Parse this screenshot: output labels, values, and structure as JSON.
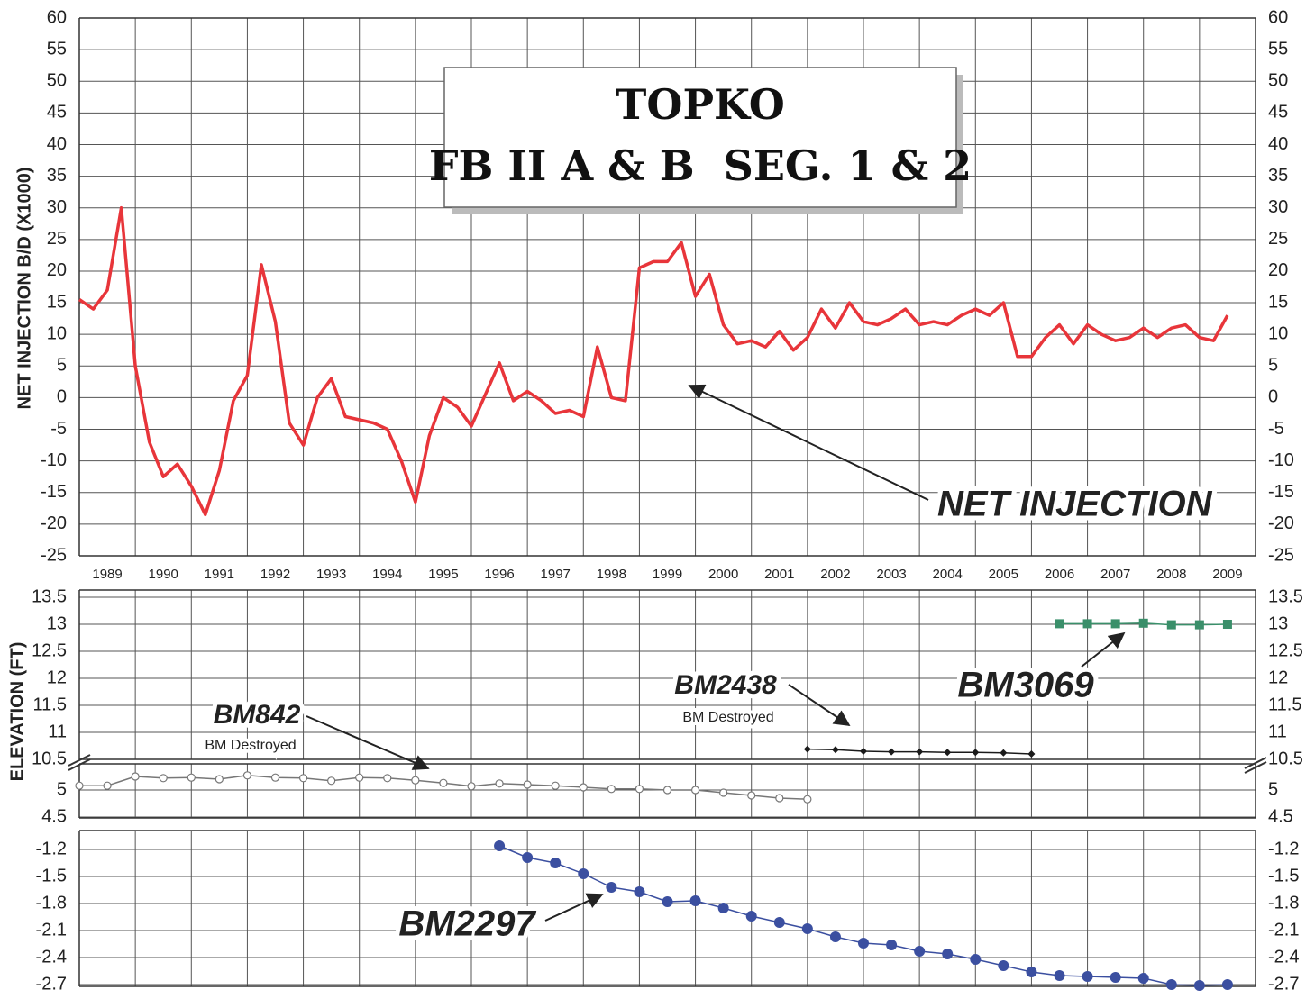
{
  "chart_data": [
    {
      "type": "line",
      "title": [
        "TOPKO",
        "FB II A & B  SEG. 1 & 2"
      ],
      "y_label": "NET INJECTION B/D (X1000)",
      "xlim": [
        1989,
        2010
      ],
      "xticks": [
        1989,
        1990,
        1991,
        1992,
        1993,
        1994,
        1995,
        1996,
        1997,
        1998,
        1999,
        2000,
        2001,
        2002,
        2003,
        2004,
        2005,
        2006,
        2007,
        2008,
        2009
      ],
      "ylim": [
        -25,
        60
      ],
      "yticks": [
        60,
        55,
        50,
        45,
        40,
        35,
        30,
        25,
        20,
        15,
        10,
        5,
        0,
        -5,
        -10,
        -15,
        -20,
        -25
      ],
      "grid": true,
      "series": [
        {
          "name": "NET INJECTION",
          "color": "#e8353a",
          "marker": "none",
          "x": [
            1989,
            1989.25,
            1989.5,
            1989.75,
            1990,
            1990.25,
            1990.5,
            1990.75,
            1991,
            1991.25,
            1991.5,
            1991.75,
            1992,
            1992.25,
            1992.5,
            1992.75,
            1993,
            1993.25,
            1993.5,
            1993.75,
            1994,
            1994.25,
            1994.5,
            1994.75,
            1995,
            1995.25,
            1995.5,
            1995.75,
            1996,
            1996.25,
            1996.5,
            1996.75,
            1997,
            1997.25,
            1997.5,
            1997.75,
            1998,
            1998.25,
            1998.5,
            1998.75,
            1999,
            1999.25,
            1999.5,
            1999.75,
            2000,
            2000.25,
            2000.5,
            2000.75,
            2001,
            2001.25,
            2001.5,
            2001.75,
            2002,
            2002.25,
            2002.5,
            2002.75,
            2003,
            2003.25,
            2003.5,
            2003.75,
            2004,
            2004.25,
            2004.5,
            2004.75,
            2005,
            2005.25,
            2005.5,
            2005.75,
            2006,
            2006.25,
            2006.5,
            2006.75,
            2007,
            2007.25,
            2007.5,
            2007.75,
            2008,
            2008.25,
            2008.5,
            2008.75,
            2009,
            2009.25,
            2009.5
          ],
          "values": [
            15.5,
            14,
            17,
            30,
            5,
            -7,
            -12.5,
            -10.5,
            -14,
            -18.5,
            -11.5,
            -0.5,
            3.5,
            21,
            12,
            -4,
            -7.5,
            0,
            3,
            -3,
            -3.5,
            -4,
            -5,
            -10,
            -16.5,
            -6,
            0,
            -1.5,
            -4.5,
            0.5,
            5.5,
            -0.5,
            1,
            -0.5,
            -2.5,
            -2,
            -3,
            8,
            0,
            -0.5,
            20.5,
            21.5,
            21.5,
            24.5,
            16,
            19.5,
            11.5,
            8.5,
            9,
            8,
            10.5,
            7.5,
            9.5,
            14,
            11,
            15,
            12,
            11.5,
            12.5,
            14,
            11.5,
            12,
            11.5,
            13,
            14,
            13,
            15,
            6.5,
            6.5,
            9.5,
            11.5,
            8.5,
            11.5,
            10,
            9,
            9.5,
            11,
            9.5,
            11,
            11.5,
            9.5,
            9,
            13
          ]
        }
      ]
    },
    {
      "type": "line",
      "y_label": "ELEVATION (FT)",
      "ylim": [
        10.5,
        13.5
      ],
      "yticks": [
        13.5,
        13,
        12.5,
        12,
        11.5,
        11,
        10.5
      ],
      "grid": true,
      "annotations": [
        "BM Destroyed"
      ],
      "series": [
        {
          "name": "BM2438",
          "color": "#1a1a1a",
          "marker": "diamond",
          "x": [
            2002,
            2002.5,
            2003,
            2003.5,
            2004,
            2004.5,
            2005,
            2005.5,
            2006
          ],
          "values": [
            10.69,
            10.68,
            10.65,
            10.64,
            10.64,
            10.63,
            10.63,
            10.62,
            10.6
          ]
        },
        {
          "name": "BM3069",
          "color": "#3a8f6a",
          "marker": "square",
          "x": [
            2006.5,
            2007,
            2007.5,
            2008,
            2008.5,
            2009,
            2009.5
          ],
          "values": [
            13.01,
            13.01,
            13.01,
            13.02,
            12.99,
            12.99,
            13.0
          ]
        }
      ]
    },
    {
      "type": "line",
      "ylim": [
        4.5,
        5.5
      ],
      "yticks": [
        5,
        4.5
      ],
      "grid": true,
      "annotations": [
        "BM Destroyed"
      ],
      "series": [
        {
          "name": "BM842",
          "color": "#777777",
          "marker": "open-circle",
          "x": [
            1989,
            1989.5,
            1990,
            1990.5,
            1991,
            1991.5,
            1992,
            1992.5,
            1993,
            1993.5,
            1994,
            1994.5,
            1995,
            1995.5,
            1996,
            1996.5,
            1997,
            1997.5,
            1998,
            1998.5,
            1999,
            1999.5,
            2000,
            2000.5,
            2001,
            2001.5,
            2002
          ],
          "values": [
            5.08,
            5.08,
            5.25,
            5.22,
            5.23,
            5.2,
            5.27,
            5.23,
            5.22,
            5.17,
            5.23,
            5.22,
            5.18,
            5.13,
            5.07,
            5.12,
            5.1,
            5.08,
            5.05,
            5.02,
            5.02,
            5.0,
            5.0,
            4.95,
            4.9,
            4.85,
            4.83
          ]
        }
      ]
    },
    {
      "type": "line",
      "ylim": [
        -2.7,
        -1.0
      ],
      "yticks": [
        -1.2,
        -1.5,
        -1.8,
        -2.1,
        -2.4,
        -2.7
      ],
      "grid": true,
      "series": [
        {
          "name": "BM2297",
          "color": "#3b4fa0",
          "marker": "circle",
          "x": [
            1996.5,
            1997,
            1997.5,
            1998,
            1998.5,
            1999,
            1999.5,
            2000,
            2000.5,
            2001,
            2001.5,
            2002,
            2002.5,
            2003,
            2003.5,
            2004,
            2004.5,
            2005,
            2005.5,
            2006,
            2006.5,
            2007,
            2007.5,
            2008,
            2008.5,
            2009,
            2009.5
          ],
          "values": [
            -1.16,
            -1.29,
            -1.35,
            -1.47,
            -1.62,
            -1.67,
            -1.78,
            -1.77,
            -1.85,
            -1.94,
            -2.01,
            -2.08,
            -2.17,
            -2.24,
            -2.26,
            -2.33,
            -2.36,
            -2.42,
            -2.49,
            -2.56,
            -2.6,
            -2.61,
            -2.62,
            -2.63,
            -2.7,
            -2.71,
            -2.7
          ]
        }
      ]
    }
  ]
}
